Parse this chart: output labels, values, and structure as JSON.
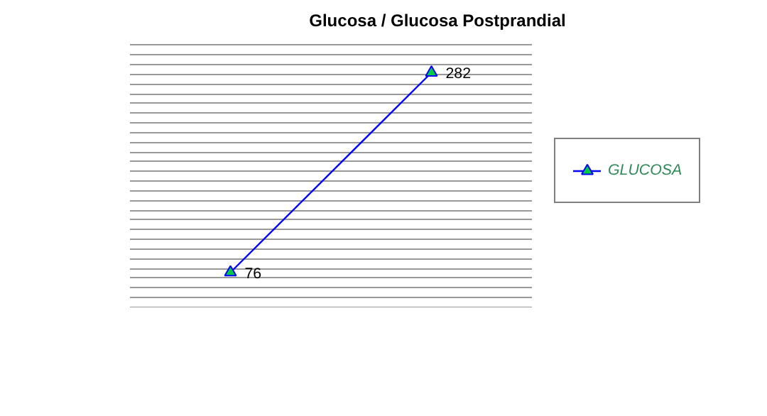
{
  "chart_data": {
    "type": "line",
    "title": "Glucosa / Glucosa Postprandial",
    "categories": [
      null,
      null
    ],
    "series": [
      {
        "name": "GLUCOSA",
        "color": "#0000ff",
        "values": [
          76,
          282
        ]
      }
    ],
    "grid": "y",
    "tick_labels": false,
    "legend": "right",
    "marker": "triangle",
    "line_style": "solid",
    "data_labels": true
  }
}
